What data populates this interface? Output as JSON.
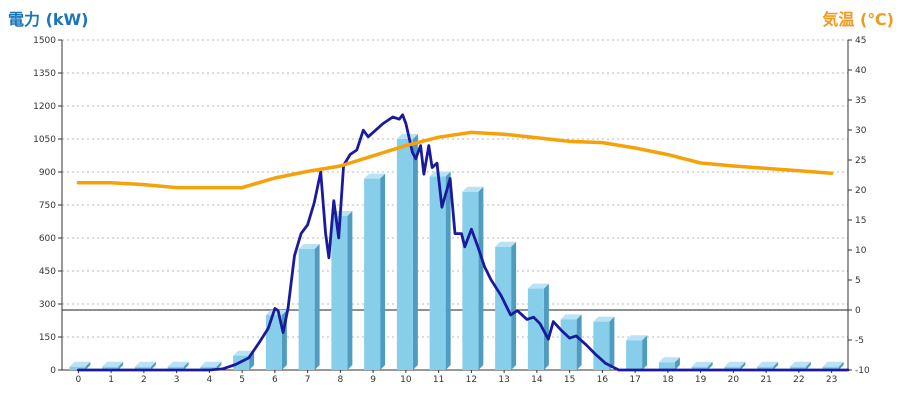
{
  "chart_data": {
    "type": "bar",
    "title": "",
    "left_axis_label": "電力 (kW)",
    "right_axis_label": "気温 (℃)",
    "categories": [
      "0",
      "1",
      "2",
      "3",
      "4",
      "5",
      "6",
      "7",
      "8",
      "9",
      "10",
      "11",
      "12",
      "13",
      "14",
      "15",
      "16",
      "17",
      "18",
      "19",
      "20",
      "21",
      "22",
      "23"
    ],
    "left_ylim": [
      0,
      1500
    ],
    "left_ticks": [
      "0",
      "150",
      "300",
      "450",
      "600",
      "750",
      "900",
      "1050",
      "1200",
      "1350",
      "1500"
    ],
    "right_ylim": [
      -10,
      45
    ],
    "right_ticks": [
      "-10",
      "-5",
      "0",
      "5",
      "10",
      "15",
      "20",
      "25",
      "30",
      "35",
      "40",
      "45"
    ],
    "grid": true,
    "colors": {
      "bar_front": "#87ceeb",
      "bar_side": "#4f9cc0",
      "bar_top": "#b9e2f5",
      "power_line": "#1a1a9c",
      "temp_line": "#f5a20a",
      "left_title": "#1b75bb",
      "right_title": "#f29a1e"
    },
    "series": [
      {
        "kind": "bar",
        "axis": "left",
        "values": [
          15,
          15,
          15,
          15,
          15,
          65,
          250,
          550,
          700,
          870,
          1050,
          880,
          810,
          560,
          370,
          230,
          220,
          135,
          35,
          15,
          15,
          15,
          15,
          15
        ]
      },
      {
        "kind": "line",
        "axis": "left",
        "points": [
          [
            0,
            0
          ],
          [
            4,
            0
          ],
          [
            4.4,
            5
          ],
          [
            4.8,
            25
          ],
          [
            5.2,
            55
          ],
          [
            5.5,
            120
          ],
          [
            5.8,
            190
          ],
          [
            6.0,
            280
          ],
          [
            6.1,
            270
          ],
          [
            6.25,
            170
          ],
          [
            6.4,
            280
          ],
          [
            6.6,
            520
          ],
          [
            6.8,
            620
          ],
          [
            7.0,
            660
          ],
          [
            7.2,
            760
          ],
          [
            7.4,
            900
          ],
          [
            7.55,
            620
          ],
          [
            7.65,
            510
          ],
          [
            7.8,
            770
          ],
          [
            7.95,
            600
          ],
          [
            8.1,
            930
          ],
          [
            8.3,
            980
          ],
          [
            8.5,
            1000
          ],
          [
            8.7,
            1090
          ],
          [
            8.85,
            1060
          ],
          [
            9.0,
            1080
          ],
          [
            9.3,
            1120
          ],
          [
            9.6,
            1150
          ],
          [
            9.8,
            1140
          ],
          [
            9.9,
            1160
          ],
          [
            10.0,
            1120
          ],
          [
            10.2,
            990
          ],
          [
            10.3,
            960
          ],
          [
            10.45,
            1020
          ],
          [
            10.55,
            890
          ],
          [
            10.7,
            1020
          ],
          [
            10.8,
            920
          ],
          [
            10.95,
            940
          ],
          [
            11.1,
            740
          ],
          [
            11.35,
            870
          ],
          [
            11.5,
            620
          ],
          [
            11.7,
            620
          ],
          [
            11.8,
            560
          ],
          [
            12.0,
            640
          ],
          [
            12.2,
            560
          ],
          [
            12.4,
            470
          ],
          [
            12.6,
            410
          ],
          [
            12.9,
            340
          ],
          [
            13.2,
            250
          ],
          [
            13.4,
            270
          ],
          [
            13.7,
            230
          ],
          [
            13.9,
            240
          ],
          [
            14.1,
            210
          ],
          [
            14.35,
            140
          ],
          [
            14.5,
            220
          ],
          [
            14.75,
            180
          ],
          [
            15.0,
            145
          ],
          [
            15.2,
            155
          ],
          [
            15.5,
            115
          ],
          [
            15.8,
            70
          ],
          [
            16.1,
            30
          ],
          [
            16.5,
            0
          ],
          [
            23.5,
            0
          ]
        ]
      },
      {
        "kind": "line",
        "axis": "right",
        "points": [
          [
            0,
            21.2
          ],
          [
            1,
            21.2
          ],
          [
            2,
            20.9
          ],
          [
            3,
            20.4
          ],
          [
            4,
            20.4
          ],
          [
            5,
            20.4
          ],
          [
            6,
            22.0
          ],
          [
            7,
            23.1
          ],
          [
            8,
            24.0
          ],
          [
            9,
            25.7
          ],
          [
            10,
            27.4
          ],
          [
            11,
            28.8
          ],
          [
            12,
            29.6
          ],
          [
            13,
            29.3
          ],
          [
            14,
            28.7
          ],
          [
            15,
            28.1
          ],
          [
            16,
            27.9
          ],
          [
            17,
            27.0
          ],
          [
            18,
            25.9
          ],
          [
            19,
            24.5
          ],
          [
            20,
            24.0
          ],
          [
            21,
            23.6
          ],
          [
            22,
            23.2
          ],
          [
            23,
            22.8
          ]
        ]
      }
    ]
  }
}
